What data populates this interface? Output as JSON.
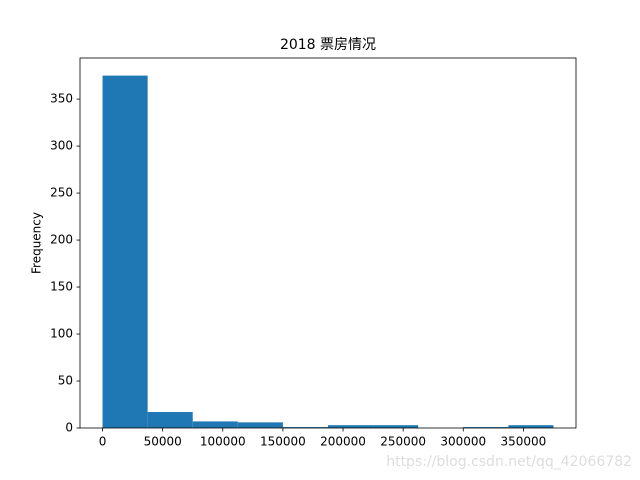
{
  "chart_data": {
    "type": "histogram",
    "title": "2018 票房情况",
    "ylabel": "Frequency",
    "bins": [
      0,
      37500,
      75000,
      112500,
      150000,
      187500,
      225000,
      262500,
      300000,
      337500,
      375000
    ],
    "counts": [
      375,
      17,
      7,
      6,
      1,
      3,
      3,
      0,
      1,
      3
    ],
    "color": "#1f77b4",
    "xlim": [
      -18750,
      393750
    ],
    "xticks": [
      0,
      50000,
      100000,
      150000,
      200000,
      250000,
      300000,
      350000
    ],
    "ylim": [
      0,
      393.75
    ],
    "yticks": [
      0,
      50,
      100,
      150,
      200,
      250,
      300,
      350
    ],
    "watermark": "https://blog.csdn.net/qq_42066782"
  }
}
